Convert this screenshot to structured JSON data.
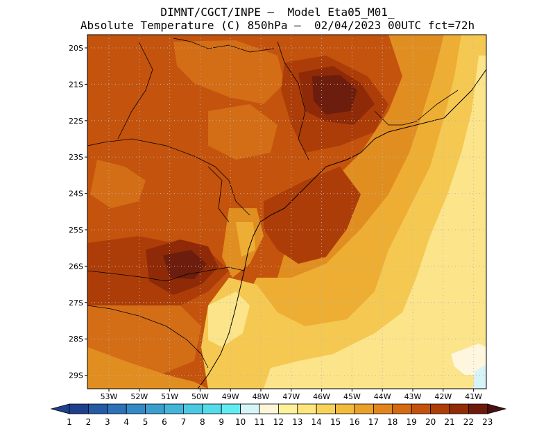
{
  "header": {
    "line1": "DIMNT/CGCT/INPE –  Model Eta05_M01_",
    "line2": "Absolute Temperature (C) 850hPa –  02/04/2023 00UTC fct=72h"
  },
  "axes": {
    "lat_labels": [
      "20S",
      "21S",
      "22S",
      "23S",
      "24S",
      "25S",
      "26S",
      "27S",
      "28S",
      "29S"
    ],
    "lon_labels": [
      "53W",
      "52W",
      "51W",
      "50W",
      "49W",
      "48W",
      "47W",
      "46W",
      "45W",
      "44W",
      "43W",
      "42W",
      "41W"
    ]
  },
  "colorbar": {
    "labels": [
      "1",
      "2",
      "3",
      "4",
      "5",
      "6",
      "7",
      "8",
      "9",
      "10",
      "11",
      "12",
      "13",
      "14",
      "15",
      "16",
      "17",
      "18",
      "19",
      "20",
      "21",
      "22",
      "23"
    ],
    "colors": [
      "#1e3f8c",
      "#245aa6",
      "#2b72b8",
      "#3289c4",
      "#3a9fce",
      "#43b5d8",
      "#4bc9e2",
      "#55dbea",
      "#63ebf2",
      "#d6f5f8",
      "#fff6da",
      "#fff199",
      "#fde67c",
      "#f8d35a",
      "#f1bb3c",
      "#eaa12a",
      "#e0861d",
      "#d46a12",
      "#c4520c",
      "#ad3e08",
      "#922c06",
      "#6d1a0a"
    ]
  },
  "map_fields": {
    "colors": {
      "t14": "#fbe48a",
      "t15": "#f5c852",
      "t16": "#eeae33",
      "t17": "#e18e21",
      "t18": "#d36d16",
      "t19": "#c4530d",
      "t20": "#ad3d08",
      "t21": "#8e2a07",
      "t22": "#6c1d0d",
      "t11": "#fff6de",
      "t10": "#d6f3f8",
      "coast": "#000000",
      "grid": "#b8b8b8"
    }
  }
}
